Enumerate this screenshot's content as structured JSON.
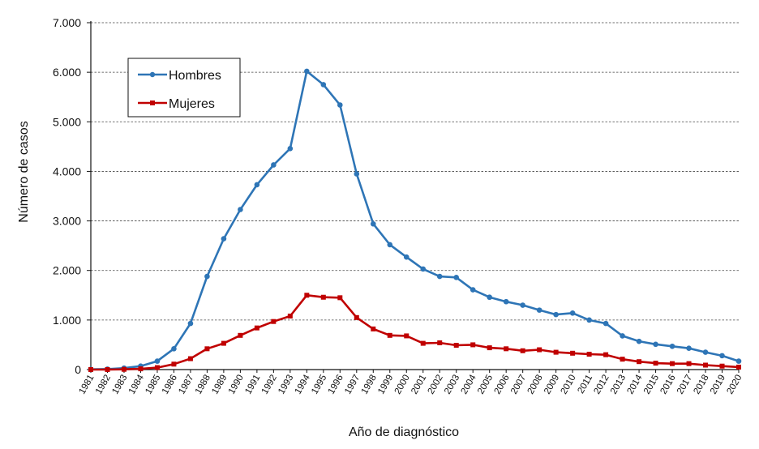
{
  "chart_data": {
    "type": "line",
    "xlabel": "Año de diagnóstico",
    "ylabel": "Número de casos",
    "ylim": [
      0,
      7000
    ],
    "y_ticks": [
      "0",
      "1.000",
      "2.000",
      "3.000",
      "4.000",
      "5.000",
      "6.000",
      "7.000"
    ],
    "grid": "horizontal dashed",
    "legend_position": "top-left",
    "categories": [
      "1981",
      "1982",
      "1983",
      "1984",
      "1985",
      "1986",
      "1987",
      "1988",
      "1989",
      "1990",
      "1991",
      "1992",
      "1993",
      "1994",
      "1995",
      "1996",
      "1997",
      "1998",
      "1999",
      "2000",
      "2001",
      "2002",
      "2003",
      "2004",
      "2005",
      "2006",
      "2007",
      "2008",
      "2009",
      "2010",
      "2011",
      "2012",
      "2013",
      "2014",
      "2015",
      "2016",
      "2017",
      "2018",
      "2019",
      "2020"
    ],
    "series": [
      {
        "name": "Hombres",
        "color": "#2E75B6",
        "marker": "circle",
        "values": [
          5,
          10,
          30,
          70,
          170,
          420,
          930,
          1880,
          2640,
          3230,
          3730,
          4130,
          4460,
          6020,
          5750,
          5340,
          3950,
          2940,
          2520,
          2270,
          2030,
          1880,
          1860,
          1610,
          1460,
          1370,
          1300,
          1200,
          1110,
          1140,
          1000,
          930,
          680,
          570,
          510,
          470,
          430,
          350,
          280,
          170
        ]
      },
      {
        "name": "Mujeres",
        "color": "#C00000",
        "marker": "square",
        "values": [
          0,
          0,
          5,
          15,
          40,
          110,
          220,
          420,
          530,
          690,
          840,
          970,
          1080,
          1500,
          1460,
          1450,
          1050,
          820,
          690,
          680,
          530,
          540,
          490,
          500,
          440,
          420,
          380,
          400,
          350,
          330,
          310,
          300,
          210,
          160,
          130,
          120,
          120,
          90,
          70,
          50
        ]
      }
    ]
  }
}
